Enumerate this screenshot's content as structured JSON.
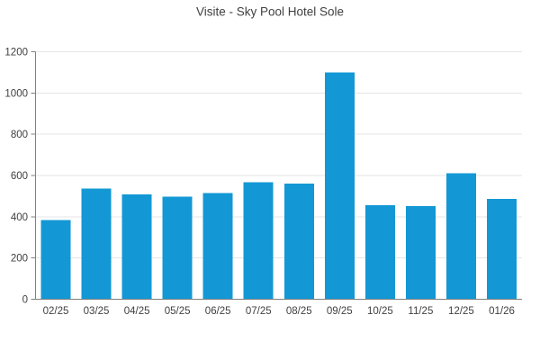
{
  "chart_data": {
    "type": "bar",
    "title": "Visite - Sky Pool Hotel Sole",
    "categories": [
      "02/25",
      "03/25",
      "04/25",
      "05/25",
      "06/25",
      "07/25",
      "08/25",
      "09/25",
      "10/25",
      "11/25",
      "12/25",
      "01/26"
    ],
    "values": [
      385,
      537,
      509,
      497,
      515,
      568,
      560,
      1100,
      457,
      452,
      610,
      487
    ],
    "xlabel": "",
    "ylabel": "",
    "ylim": [
      0,
      1200
    ],
    "ytick_step": 200,
    "ytick_labels": [
      "0",
      "200",
      "400",
      "600",
      "800",
      "1000",
      "1200"
    ],
    "grid": "horizontal-only",
    "legend": "none",
    "colors": {
      "bar": "#1398d5",
      "grid": "#e6e6e6",
      "axis": "#808080",
      "tick_label": "#404040",
      "title": "#404040",
      "background": "#ffffff"
    }
  }
}
